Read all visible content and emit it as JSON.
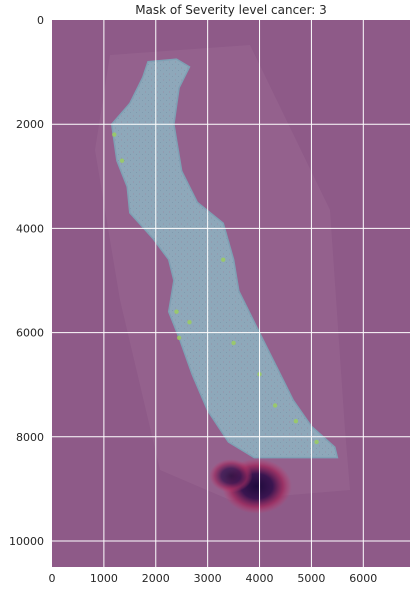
{
  "chart_data": {
    "type": "heatmap",
    "title": "Mask of Severity level cancer: 3",
    "xlabel": "",
    "ylabel": "",
    "xlim": [
      0,
      6900
    ],
    "ylim": [
      10500,
      0
    ],
    "x_ticks": [
      "0",
      "1000",
      "2000",
      "3000",
      "4000",
      "5000",
      "6000"
    ],
    "x_tick_values": [
      0,
      1000,
      2000,
      3000,
      4000,
      5000,
      6000
    ],
    "y_ticks": [
      "0",
      "2000",
      "4000",
      "6000",
      "8000",
      "10000"
    ],
    "y_tick_values": [
      0,
      2000,
      4000,
      6000,
      8000,
      10000
    ],
    "grid": true,
    "image_description": "whole-slide tissue image overlaid with magenta severity mask",
    "background_color": "#8e5a88",
    "tissue_color": "#8aa4b8",
    "hotspot_color": "#2a0f45",
    "tissue_outline": [
      [
        1850,
        800
      ],
      [
        2400,
        750
      ],
      [
        2650,
        900
      ],
      [
        2450,
        1300
      ],
      [
        2350,
        2000
      ],
      [
        2500,
        2900
      ],
      [
        2800,
        3500
      ],
      [
        3300,
        3900
      ],
      [
        3500,
        4600
      ],
      [
        3600,
        5200
      ],
      [
        3950,
        5900
      ],
      [
        4300,
        6600
      ],
      [
        4650,
        7300
      ],
      [
        5000,
        7800
      ],
      [
        5450,
        8200
      ],
      [
        5500,
        8400
      ],
      [
        3900,
        8400
      ],
      [
        3400,
        8100
      ],
      [
        3000,
        7500
      ],
      [
        2700,
        6800
      ],
      [
        2450,
        6100
      ],
      [
        2250,
        5600
      ],
      [
        2350,
        5000
      ],
      [
        2250,
        4600
      ],
      [
        1950,
        4200
      ],
      [
        1500,
        3700
      ],
      [
        1450,
        3200
      ],
      [
        1250,
        2700
      ],
      [
        1150,
        2000
      ],
      [
        1500,
        1600
      ],
      [
        1750,
        1100
      ]
    ],
    "hotspots": [
      {
        "x": 3950,
        "y": 8950,
        "rx": 420,
        "ry": 330,
        "intensity": 1.0
      },
      {
        "x": 3450,
        "y": 8750,
        "rx": 260,
        "ry": 200,
        "intensity": 0.8
      }
    ]
  }
}
